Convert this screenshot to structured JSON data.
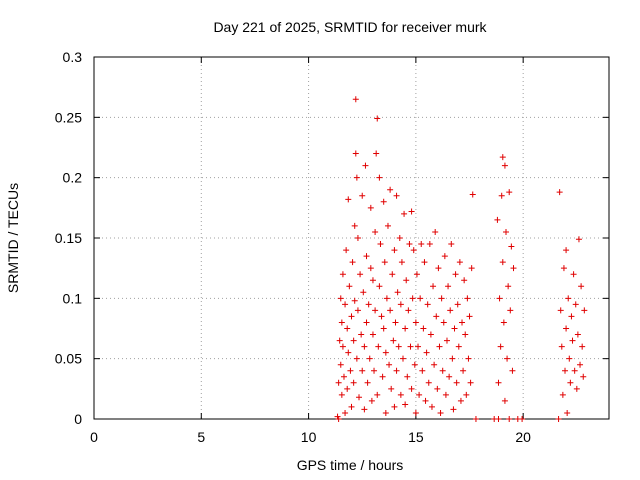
{
  "chart_data": {
    "type": "scatter",
    "title": "Day 221 of 2025, SRMTID for receiver murk",
    "xlabel": "GPS time / hours",
    "ylabel": "SRMTID / TECUs",
    "xlim": [
      0,
      24
    ],
    "ylim": [
      0,
      0.3
    ],
    "x_ticks": [
      0,
      5,
      10,
      15,
      20
    ],
    "x_tick_labels": [
      "0",
      "5",
      "10",
      "15",
      "20"
    ],
    "y_ticks": [
      0,
      0.05,
      0.1,
      0.15,
      0.2,
      0.25,
      0.3
    ],
    "y_tick_labels": [
      "0",
      "0.05",
      "0.1",
      "0.15",
      "0.2",
      "0.25",
      "0.3"
    ],
    "grid": true,
    "legend": "none",
    "marker": "+",
    "color": "#e00000",
    "series": [
      {
        "points": [
          [
            11.35,
            0.002
          ],
          [
            11.4,
            0.03
          ],
          [
            11.45,
            0.065
          ],
          [
            11.5,
            0.1
          ],
          [
            11.5,
            0.045
          ],
          [
            11.55,
            0.08
          ],
          [
            11.55,
            0.02
          ],
          [
            11.6,
            0.12
          ],
          [
            11.6,
            0.06
          ],
          [
            11.65,
            0.035
          ],
          [
            11.7,
            0.005
          ],
          [
            11.7,
            0.095
          ],
          [
            11.75,
            0.14
          ],
          [
            11.8,
            0.075
          ],
          [
            11.8,
            0.025
          ],
          [
            11.85,
            0.182
          ],
          [
            11.85,
            0.055
          ],
          [
            11.9,
            0.11
          ],
          [
            11.95,
            0.04
          ],
          [
            12.0,
            0.085
          ],
          [
            12.0,
            0.01
          ],
          [
            12.05,
            0.13
          ],
          [
            12.1,
            0.065
          ],
          [
            12.1,
            0.03
          ],
          [
            12.15,
            0.098
          ],
          [
            12.15,
            0.16
          ],
          [
            12.2,
            0.265
          ],
          [
            12.2,
            0.22
          ],
          [
            12.25,
            0.2
          ],
          [
            12.25,
            0.05
          ],
          [
            12.3,
            0.15
          ],
          [
            12.3,
            0.09
          ],
          [
            12.35,
            0.018
          ],
          [
            12.4,
            0.12
          ],
          [
            12.45,
            0.07
          ],
          [
            12.5,
            0.04
          ],
          [
            12.5,
            0.185
          ],
          [
            12.55,
            0.105
          ],
          [
            12.6,
            0.008
          ],
          [
            12.6,
            0.06
          ],
          [
            12.65,
            0.21
          ],
          [
            12.7,
            0.135
          ],
          [
            12.7,
            0.08
          ],
          [
            12.75,
            0.03
          ],
          [
            12.8,
            0.095
          ],
          [
            12.85,
            0.05
          ],
          [
            12.9,
            0.175
          ],
          [
            12.9,
            0.125
          ],
          [
            12.95,
            0.015
          ],
          [
            13.0,
            0.07
          ],
          [
            13.0,
            0.115
          ],
          [
            13.05,
            0.04
          ],
          [
            13.1,
            0.155
          ],
          [
            13.1,
            0.09
          ],
          [
            13.15,
            0.22
          ],
          [
            13.2,
            0.249
          ],
          [
            13.2,
            0.02
          ],
          [
            13.25,
            0.06
          ],
          [
            13.3,
            0.11
          ],
          [
            13.3,
            0.2
          ],
          [
            13.35,
            0.145
          ],
          [
            13.4,
            0.085
          ],
          [
            13.45,
            0.035
          ],
          [
            13.5,
            0.18
          ],
          [
            13.5,
            0.075
          ],
          [
            13.55,
            0.13
          ],
          [
            13.6,
            0.005
          ],
          [
            13.6,
            0.055
          ],
          [
            13.65,
            0.1
          ],
          [
            13.7,
            0.16
          ],
          [
            13.75,
            0.045
          ],
          [
            13.8,
            0.09
          ],
          [
            13.8,
            0.19
          ],
          [
            13.85,
            0.025
          ],
          [
            13.9,
            0.12
          ],
          [
            13.95,
            0.065
          ],
          [
            14.0,
            0.14
          ],
          [
            14.0,
            0.01
          ],
          [
            14.05,
            0.08
          ],
          [
            14.1,
            0.185
          ],
          [
            14.1,
            0.04
          ],
          [
            14.15,
            0.105
          ],
          [
            14.2,
            0.06
          ],
          [
            14.25,
            0.15
          ],
          [
            14.3,
            0.02
          ],
          [
            14.3,
            0.095
          ],
          [
            14.35,
            0.13
          ],
          [
            14.4,
            0.05
          ],
          [
            14.45,
            0.17
          ],
          [
            14.5,
            0.075
          ],
          [
            14.5,
            0.012
          ],
          [
            14.55,
            0.115
          ],
          [
            14.6,
            0.035
          ],
          [
            14.65,
            0.09
          ],
          [
            14.7,
            0.145
          ],
          [
            14.75,
            0.06
          ],
          [
            14.8,
            0.172
          ],
          [
            14.8,
            0.025
          ],
          [
            14.85,
            0.1
          ],
          [
            14.9,
            0.14
          ],
          [
            14.95,
            0.045
          ],
          [
            15.0,
            0.08
          ],
          [
            15.0,
            0.005
          ],
          [
            15.05,
            0.12
          ],
          [
            15.1,
            0.06
          ],
          [
            15.15,
            0.02
          ],
          [
            15.2,
            0.1
          ],
          [
            15.25,
            0.145
          ],
          [
            15.3,
            0.04
          ],
          [
            15.35,
            0.075
          ],
          [
            15.4,
            0.13
          ],
          [
            15.45,
            0.015
          ],
          [
            15.5,
            0.055
          ],
          [
            15.55,
            0.095
          ],
          [
            15.6,
            0.03
          ],
          [
            15.65,
            0.145
          ],
          [
            15.7,
            0.07
          ],
          [
            15.75,
            0.01
          ],
          [
            15.8,
            0.11
          ],
          [
            15.85,
            0.045
          ],
          [
            15.9,
            0.155
          ],
          [
            15.95,
            0.085
          ],
          [
            16.0,
            0.025
          ],
          [
            16.05,
            0.125
          ],
          [
            16.1,
            0.06
          ],
          [
            16.15,
            0.005
          ],
          [
            16.2,
            0.1
          ],
          [
            16.25,
            0.04
          ],
          [
            16.3,
            0.08
          ],
          [
            16.35,
            0.135
          ],
          [
            16.4,
            0.02
          ],
          [
            16.45,
            0.065
          ],
          [
            16.5,
            0.11
          ],
          [
            16.55,
            0.035
          ],
          [
            16.6,
            0.09
          ],
          [
            16.65,
            0.145
          ],
          [
            16.7,
            0.05
          ],
          [
            16.75,
            0.008
          ],
          [
            16.8,
            0.075
          ],
          [
            16.85,
            0.12
          ],
          [
            16.9,
            0.03
          ],
          [
            16.95,
            0.095
          ],
          [
            17.0,
            0.06
          ],
          [
            17.05,
            0.13
          ],
          [
            17.1,
            0.015
          ],
          [
            17.15,
            0.08
          ],
          [
            17.2,
            0.04
          ],
          [
            17.25,
            0.115
          ],
          [
            17.3,
            0.07
          ],
          [
            17.35,
            0.02
          ],
          [
            17.4,
            0.1
          ],
          [
            17.45,
            0.05
          ],
          [
            17.5,
            0.085
          ],
          [
            17.55,
            0.03
          ],
          [
            17.6,
            0.125
          ],
          [
            17.65,
            0.186
          ],
          [
            18.8,
            0.165
          ],
          [
            18.85,
            0.03
          ],
          [
            18.9,
            0.1
          ],
          [
            18.95,
            0.06
          ],
          [
            19.0,
            0.185
          ],
          [
            19.05,
            0.217
          ],
          [
            19.05,
            0.13
          ],
          [
            19.1,
            0.08
          ],
          [
            19.15,
            0.21
          ],
          [
            19.15,
            0.015
          ],
          [
            19.2,
            0.155
          ],
          [
            19.25,
            0.05
          ],
          [
            19.3,
            0.11
          ],
          [
            19.35,
            0.188
          ],
          [
            19.4,
            0.09
          ],
          [
            19.45,
            0.143
          ],
          [
            19.5,
            0.04
          ],
          [
            19.55,
            0.125
          ],
          [
            21.7,
            0.188
          ],
          [
            21.75,
            0.09
          ],
          [
            21.8,
            0.06
          ],
          [
            21.85,
            0.02
          ],
          [
            21.9,
            0.125
          ],
          [
            21.95,
            0.04
          ],
          [
            22.0,
            0.14
          ],
          [
            22.0,
            0.075
          ],
          [
            22.05,
            0.005
          ],
          [
            22.1,
            0.1
          ],
          [
            22.15,
            0.05
          ],
          [
            22.2,
            0.03
          ],
          [
            22.25,
            0.085
          ],
          [
            22.3,
            0.065
          ],
          [
            22.35,
            0.12
          ],
          [
            22.4,
            0.04
          ],
          [
            22.45,
            0.095
          ],
          [
            22.5,
            0.025
          ],
          [
            22.55,
            0.07
          ],
          [
            22.6,
            0.149
          ],
          [
            22.65,
            0.045
          ],
          [
            22.7,
            0.11
          ],
          [
            22.75,
            0.06
          ],
          [
            22.8,
            0.035
          ],
          [
            22.85,
            0.09
          ]
        ]
      },
      {
        "points": [
          [
            11.4,
            0.0
          ],
          [
            17.8,
            0.0
          ],
          [
            18.65,
            0.0
          ],
          [
            18.85,
            0.0
          ],
          [
            19.35,
            0.0
          ],
          [
            19.75,
            0.0
          ],
          [
            19.95,
            0.0
          ],
          [
            21.65,
            0.0
          ]
        ]
      }
    ]
  }
}
